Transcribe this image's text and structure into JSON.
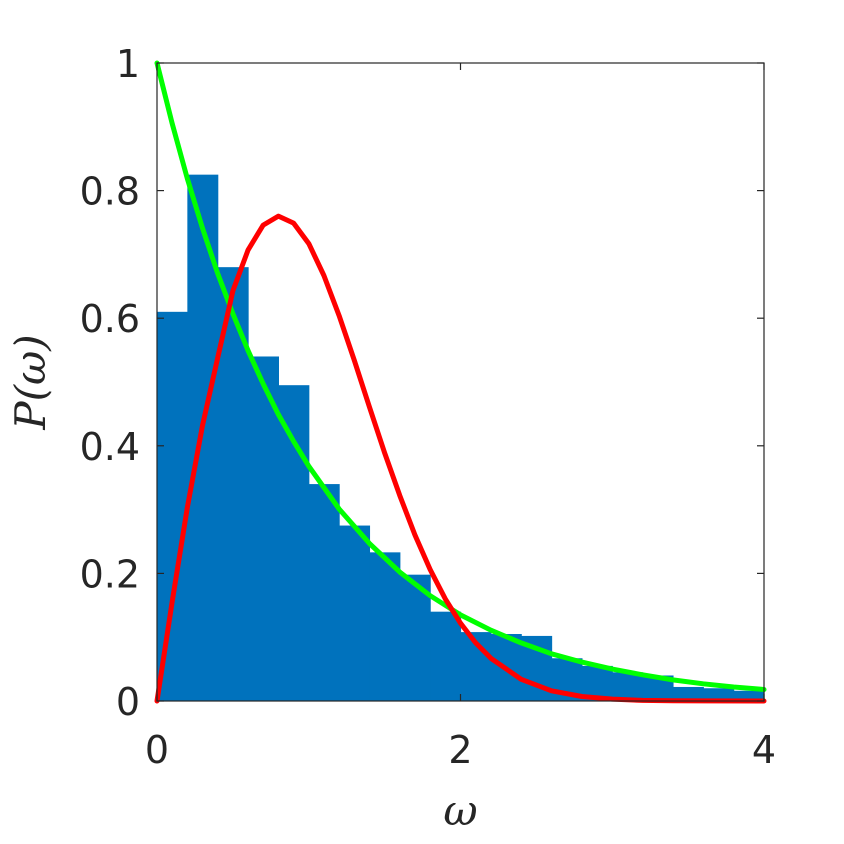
{
  "chart_data": {
    "type": "bar",
    "xlabel": "ω",
    "ylabel": "P(ω)",
    "xlim": [
      0,
      4
    ],
    "ylim": [
      0,
      1
    ],
    "xticks": [
      "0",
      "2",
      "4"
    ],
    "yticks": [
      "0",
      "0.2",
      "0.4",
      "0.6",
      "0.8",
      "1"
    ],
    "grid": false,
    "bin_width": 0.2,
    "bins": [
      {
        "x0": 0.0,
        "value": 0.61
      },
      {
        "x0": 0.2,
        "value": 0.825
      },
      {
        "x0": 0.4,
        "value": 0.68
      },
      {
        "x0": 0.6,
        "value": 0.54
      },
      {
        "x0": 0.8,
        "value": 0.495
      },
      {
        "x0": 1.0,
        "value": 0.34
      },
      {
        "x0": 1.2,
        "value": 0.275
      },
      {
        "x0": 1.4,
        "value": 0.233
      },
      {
        "x0": 1.6,
        "value": 0.198
      },
      {
        "x0": 1.8,
        "value": 0.14
      },
      {
        "x0": 2.0,
        "value": 0.108
      },
      {
        "x0": 2.2,
        "value": 0.105
      },
      {
        "x0": 2.4,
        "value": 0.102
      },
      {
        "x0": 2.6,
        "value": 0.067
      },
      {
        "x0": 2.8,
        "value": 0.055
      },
      {
        "x0": 3.0,
        "value": 0.045
      },
      {
        "x0": 3.2,
        "value": 0.04
      },
      {
        "x0": 3.4,
        "value": 0.022
      },
      {
        "x0": 3.6,
        "value": 0.02
      },
      {
        "x0": 3.8,
        "value": 0.016
      }
    ],
    "curves": [
      {
        "color": "#00ff00",
        "x": [
          0,
          0.1,
          0.2,
          0.3,
          0.4,
          0.5,
          0.6,
          0.7,
          0.8,
          0.9,
          1.0,
          1.2,
          1.4,
          1.6,
          1.8,
          2.0,
          2.2,
          2.4,
          2.6,
          2.8,
          3.0,
          3.2,
          3.4,
          3.6,
          3.8,
          4.0
        ],
        "y": [
          1,
          0.905,
          0.819,
          0.741,
          0.67,
          0.607,
          0.549,
          0.497,
          0.449,
          0.407,
          0.368,
          0.301,
          0.247,
          0.202,
          0.165,
          0.135,
          0.111,
          0.091,
          0.074,
          0.061,
          0.05,
          0.041,
          0.033,
          0.027,
          0.022,
          0.018
        ]
      },
      {
        "color": "#ff0000",
        "x": [
          0,
          0.1,
          0.2,
          0.3,
          0.4,
          0.5,
          0.6,
          0.7,
          0.8,
          0.9,
          1.0,
          1.1,
          1.2,
          1.3,
          1.4,
          1.5,
          1.6,
          1.7,
          1.8,
          1.9,
          2.0,
          2.1,
          2.2,
          2.4,
          2.6,
          2.8,
          3.0,
          3.2,
          3.4,
          3.6,
          4.0
        ],
        "y": [
          0,
          0.156,
          0.303,
          0.432,
          0.538,
          0.643,
          0.707,
          0.746,
          0.76,
          0.749,
          0.717,
          0.667,
          0.604,
          0.534,
          0.461,
          0.389,
          0.322,
          0.26,
          0.206,
          0.16,
          0.122,
          0.091,
          0.067,
          0.034,
          0.016,
          0.007,
          0.003,
          0.001,
          0.0004,
          0.0001,
          0
        ]
      }
    ],
    "colors": {
      "bars": "#0072bd",
      "axes": "#262626"
    }
  }
}
